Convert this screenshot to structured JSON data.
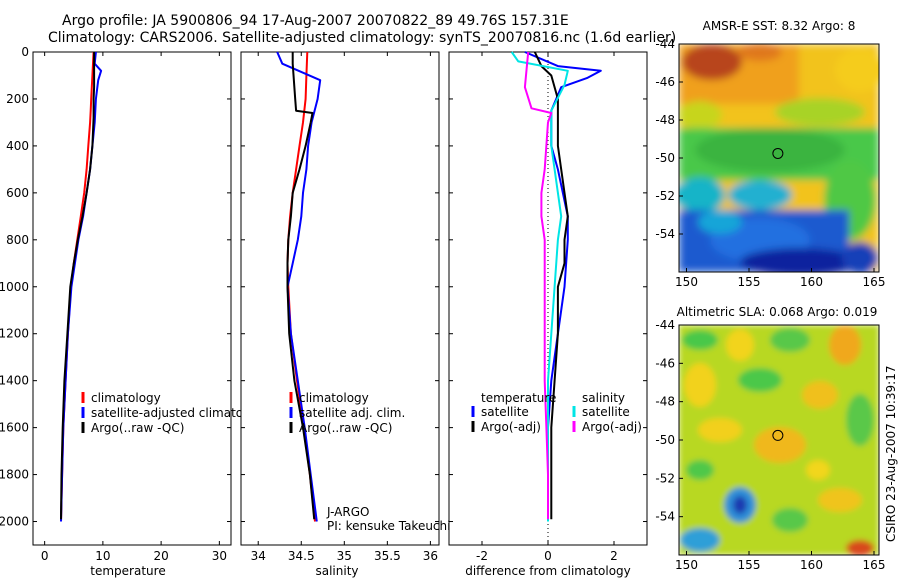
{
  "header": {
    "line1": "Argo profile: JA 5900806_94 17-Aug-2007 20070822_89 49.76S 157.31E",
    "line2": "Climatology: CARS2006. Satellite-adjusted climatology: synTS_20070816.nc (1.6d earlier)"
  },
  "footer_stamp": "CSIRO 23-Aug-2007 10:39:17",
  "colors": {
    "climatology": "#ff0000",
    "satellite": "#0000ff",
    "argo": "#000000",
    "satellite_sal_diff": "#00e5e5",
    "argo_sal_diff": "#ff00ff",
    "marker": "#000000"
  },
  "chart_data": [
    {
      "id": "temperature",
      "type": "line",
      "xlabel": "temperature",
      "ylabel": "",
      "xlim": [
        -2,
        32
      ],
      "ylim": [
        2100,
        0
      ],
      "x_ticks": [
        0,
        10,
        20,
        30
      ],
      "y_ticks": [
        0,
        200,
        400,
        600,
        800,
        1000,
        1200,
        1400,
        1600,
        1800,
        2000
      ],
      "legend": [
        "climatology",
        "satellite-adjusted climatology",
        "Argo(..raw -QC)"
      ],
      "series": [
        {
          "name": "climatology",
          "color": "#ff0000",
          "points": [
            [
              8.4,
              0
            ],
            [
              8.3,
              50
            ],
            [
              8.2,
              100
            ],
            [
              8.1,
              150
            ],
            [
              8.0,
              200
            ],
            [
              7.9,
              250
            ],
            [
              7.8,
              300
            ],
            [
              7.5,
              400
            ],
            [
              7.2,
              500
            ],
            [
              6.8,
              600
            ],
            [
              6.2,
              700
            ],
            [
              5.6,
              800
            ],
            [
              5.0,
              900
            ],
            [
              4.5,
              1000
            ],
            [
              4.0,
              1200
            ],
            [
              3.6,
              1400
            ],
            [
              3.2,
              1600
            ],
            [
              3.0,
              1800
            ],
            [
              2.8,
              2000
            ]
          ]
        },
        {
          "name": "satellite-adjusted climatology",
          "color": "#0000ff",
          "points": [
            [
              8.8,
              0
            ],
            [
              8.6,
              50
            ],
            [
              9.7,
              80
            ],
            [
              9.2,
              120
            ],
            [
              8.8,
              200
            ],
            [
              8.6,
              300
            ],
            [
              8.2,
              400
            ],
            [
              7.8,
              500
            ],
            [
              7.2,
              600
            ],
            [
              6.6,
              700
            ],
            [
              5.8,
              800
            ],
            [
              5.2,
              900
            ],
            [
              4.6,
              1000
            ],
            [
              4.0,
              1200
            ],
            [
              3.6,
              1400
            ],
            [
              3.2,
              1600
            ],
            [
              3.0,
              1800
            ],
            [
              2.8,
              2000
            ]
          ]
        },
        {
          "name": "Argo(..raw -QC)",
          "color": "#000000",
          "points": [
            [
              8.5,
              0
            ],
            [
              8.5,
              50
            ],
            [
              8.5,
              100
            ],
            [
              8.5,
              150
            ],
            [
              8.4,
              200
            ],
            [
              8.4,
              280
            ],
            [
              8.2,
              400
            ],
            [
              7.8,
              500
            ],
            [
              7.2,
              600
            ],
            [
              6.5,
              700
            ],
            [
              5.7,
              800
            ],
            [
              5.0,
              900
            ],
            [
              4.4,
              1000
            ],
            [
              3.9,
              1200
            ],
            [
              3.4,
              1400
            ],
            [
              3.1,
              1600
            ],
            [
              2.9,
              1800
            ],
            [
              2.8,
              1990
            ]
          ]
        }
      ]
    },
    {
      "id": "salinity",
      "type": "line",
      "xlabel": "salinity",
      "ylabel": "",
      "xlim": [
        33.8,
        36.1
      ],
      "ylim": [
        2100,
        0
      ],
      "x_ticks": [
        34,
        34.5,
        35,
        35.5,
        36
      ],
      "legend": [
        "climatology",
        "satellite adj. clim.",
        "Argo(..raw -QC)"
      ],
      "annotation": [
        "J-ARGO",
        "PI: kensuke Takeuchi"
      ],
      "series": [
        {
          "name": "climatology",
          "color": "#ff0000",
          "points": [
            [
              34.57,
              0
            ],
            [
              34.56,
              100
            ],
            [
              34.55,
              200
            ],
            [
              34.52,
              300
            ],
            [
              34.48,
              400
            ],
            [
              34.44,
              500
            ],
            [
              34.4,
              600
            ],
            [
              34.37,
              700
            ],
            [
              34.35,
              800
            ],
            [
              34.34,
              900
            ],
            [
              34.35,
              1000
            ],
            [
              34.38,
              1200
            ],
            [
              34.45,
              1400
            ],
            [
              34.53,
              1600
            ],
            [
              34.6,
              1800
            ],
            [
              34.66,
              2000
            ]
          ]
        },
        {
          "name": "satellite adj. clim.",
          "color": "#0000ff",
          "points": [
            [
              34.22,
              0
            ],
            [
              34.28,
              50
            ],
            [
              34.72,
              120
            ],
            [
              34.69,
              200
            ],
            [
              34.62,
              300
            ],
            [
              34.58,
              400
            ],
            [
              34.56,
              500
            ],
            [
              34.52,
              600
            ],
            [
              34.5,
              700
            ],
            [
              34.46,
              800
            ],
            [
              34.4,
              900
            ],
            [
              34.34,
              1000
            ],
            [
              34.38,
              1200
            ],
            [
              34.46,
              1400
            ],
            [
              34.54,
              1600
            ],
            [
              34.61,
              1800
            ],
            [
              34.68,
              2000
            ]
          ]
        },
        {
          "name": "Argo(..raw -QC)",
          "color": "#000000",
          "points": [
            [
              34.4,
              0
            ],
            [
              34.4,
              50
            ],
            [
              34.43,
              200
            ],
            [
              34.44,
              250
            ],
            [
              34.63,
              260
            ],
            [
              34.61,
              300
            ],
            [
              34.55,
              400
            ],
            [
              34.48,
              500
            ],
            [
              34.4,
              600
            ],
            [
              34.38,
              700
            ],
            [
              34.35,
              800
            ],
            [
              34.34,
              900
            ],
            [
              34.34,
              1000
            ],
            [
              34.36,
              1200
            ],
            [
              34.42,
              1400
            ],
            [
              34.52,
              1600
            ],
            [
              34.6,
              1800
            ],
            [
              34.65,
              1990
            ]
          ]
        }
      ]
    },
    {
      "id": "difference",
      "type": "line",
      "xlabel": "difference from climatology",
      "ylabel": "",
      "xlim": [
        -3,
        3
      ],
      "ylim": [
        2100,
        0
      ],
      "x_ticks": [
        -2,
        0,
        2
      ],
      "legend_groups": [
        {
          "title": "temperature",
          "items": [
            "satellite",
            "Argo(-adj)"
          ]
        },
        {
          "title": "salinity",
          "items": [
            "satellite",
            "Argo(-adj)"
          ]
        }
      ],
      "series": [
        {
          "name": "temperature satellite",
          "color": "#0000ff",
          "points": [
            [
              -0.7,
              0
            ],
            [
              0.3,
              60
            ],
            [
              1.6,
              80
            ],
            [
              1.2,
              110
            ],
            [
              0.4,
              150
            ],
            [
              0.1,
              250
            ],
            [
              0.1,
              400
            ],
            [
              0.3,
              500
            ],
            [
              0.6,
              700
            ],
            [
              0.6,
              800
            ],
            [
              0.5,
              1000
            ],
            [
              0.3,
              1200
            ],
            [
              0.1,
              1400
            ],
            [
              0.0,
              1600
            ],
            [
              0.0,
              1800
            ],
            [
              0.0,
              2000
            ]
          ]
        },
        {
          "name": "temperature Argo(-adj)",
          "color": "#000000",
          "points": [
            [
              -0.4,
              0
            ],
            [
              -0.2,
              60
            ],
            [
              0.1,
              100
            ],
            [
              0.3,
              200
            ],
            [
              0.3,
              300
            ],
            [
              0.3,
              400
            ],
            [
              0.4,
              500
            ],
            [
              0.6,
              700
            ],
            [
              0.5,
              800
            ],
            [
              0.5,
              900
            ],
            [
              0.3,
              1000
            ],
            [
              0.3,
              1200
            ],
            [
              0.2,
              1400
            ],
            [
              0.1,
              1600
            ],
            [
              0.1,
              1800
            ],
            [
              0.1,
              1990
            ]
          ]
        },
        {
          "name": "salinity satellite",
          "color": "#00e5e5",
          "points": [
            [
              -1.1,
              0
            ],
            [
              -0.9,
              40
            ],
            [
              0.6,
              80
            ],
            [
              0.5,
              140
            ],
            [
              0.1,
              250
            ],
            [
              0.1,
              400
            ],
            [
              0.2,
              500
            ],
            [
              0.4,
              700
            ],
            [
              0.3,
              800
            ],
            [
              0.2,
              1000
            ],
            [
              0.1,
              1200
            ],
            [
              0.0,
              1400
            ],
            [
              0.0,
              1600
            ],
            [
              0.0,
              1800
            ],
            [
              0.0,
              2000
            ]
          ]
        },
        {
          "name": "salinity Argo(-adj)",
          "color": "#ff00ff",
          "points": [
            [
              -0.6,
              0
            ],
            [
              -0.7,
              150
            ],
            [
              -0.5,
              240
            ],
            [
              0.1,
              260
            ],
            [
              0.0,
              300
            ],
            [
              -0.1,
              500
            ],
            [
              -0.2,
              600
            ],
            [
              -0.2,
              700
            ],
            [
              -0.1,
              800
            ],
            [
              -0.1,
              1000
            ],
            [
              -0.1,
              1200
            ],
            [
              -0.1,
              1400
            ],
            [
              -0.05,
              1600
            ],
            [
              0.0,
              1800
            ],
            [
              0.0,
              1990
            ]
          ]
        }
      ]
    }
  ],
  "maps": [
    {
      "id": "sst-map",
      "title": "AMSR-E SST: 8.32 Argo: 8",
      "xlim": [
        149.4,
        165.4
      ],
      "ylim": [
        -56,
        -44
      ],
      "x_ticks": [
        150,
        155,
        160,
        165
      ],
      "y_ticks": [
        -44,
        -46,
        -48,
        -50,
        -52,
        -54
      ],
      "marker": [
        157.31,
        -49.76
      ]
    },
    {
      "id": "sla-map",
      "title": "Altimetric SLA: 0.068 Argo: 0.019",
      "xlim": [
        149.4,
        165.4
      ],
      "ylim": [
        -56,
        -44
      ],
      "x_ticks": [
        150,
        155,
        160,
        165
      ],
      "y_ticks": [
        -44,
        -46,
        -48,
        -50,
        -52,
        -54
      ],
      "marker": [
        157.31,
        -49.76
      ]
    }
  ]
}
